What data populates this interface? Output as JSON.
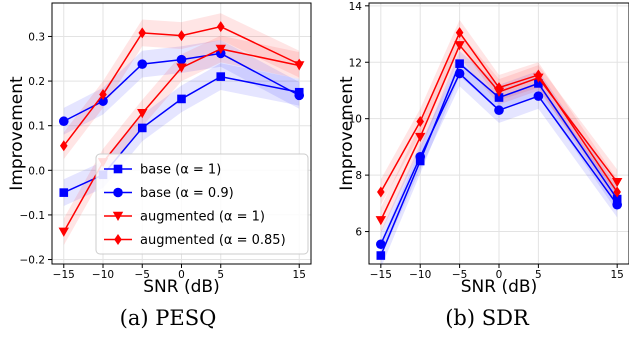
{
  "chart_data": [
    {
      "type": "line",
      "caption": "(a) PESQ",
      "title": "",
      "xlabel": "SNR (dB)",
      "ylabel": "Improvement",
      "x": [
        -15,
        -10,
        -5,
        0,
        5,
        15
      ],
      "xticks": [
        -15,
        -10,
        -5,
        0,
        5,
        15
      ],
      "xlim": [
        -16.5,
        16.5
      ],
      "yticks": [
        -0.2,
        -0.1,
        0.0,
        0.1,
        0.2,
        0.3
      ],
      "ytick_labels": [
        "-0.2",
        "-0.1",
        "0.0",
        "0.1",
        "0.2",
        "0.3"
      ],
      "ylim": [
        -0.21,
        0.375
      ],
      "grid": true,
      "legend": "bottom-center",
      "series": [
        {
          "name": "base (α = 1)",
          "values": [
            -0.05,
            -0.01,
            0.095,
            0.16,
            0.21,
            0.175
          ],
          "color": "#0000ff",
          "marker": "square",
          "band": 0.03
        },
        {
          "name": "base (α = 0.9)",
          "values": [
            0.11,
            0.155,
            0.238,
            0.248,
            0.262,
            0.168
          ],
          "color": "#0000ff",
          "marker": "circle",
          "band": 0.03
        },
        {
          "name": "augmented (α = 1)",
          "values": [
            -0.138,
            0.018,
            0.128,
            0.23,
            0.272,
            0.235
          ],
          "color": "#ff0000",
          "marker": "triangle-down",
          "band": 0.03
        },
        {
          "name": "augmented (α = 0.85)",
          "values": [
            0.055,
            0.17,
            0.308,
            0.302,
            0.322,
            0.238
          ],
          "color": "#ff0000",
          "marker": "diamond",
          "band": 0.03
        }
      ]
    },
    {
      "type": "line",
      "caption": "(b) SDR",
      "title": "",
      "xlabel": "SNR (dB)",
      "ylabel": "Improvement",
      "x": [
        -15,
        -10,
        -5,
        0,
        5,
        15
      ],
      "xticks": [
        -15,
        -10,
        -5,
        0,
        5,
        15
      ],
      "xlim": [
        -16.5,
        16.5
      ],
      "yticks": [
        6,
        8,
        10,
        12,
        14
      ],
      "ytick_labels": [
        "6",
        "8",
        "10",
        "12",
        "14"
      ],
      "ylim": [
        4.85,
        14.1
      ],
      "grid": true,
      "legend": "none",
      "series": [
        {
          "name": "base (α = 1)",
          "values": [
            5.15,
            8.5,
            11.95,
            10.75,
            11.25,
            7.15
          ],
          "color": "#0000ff",
          "marker": "square",
          "band": 0.45
        },
        {
          "name": "base (α = 0.9)",
          "values": [
            5.55,
            8.65,
            11.6,
            10.3,
            10.8,
            6.95
          ],
          "color": "#0000ff",
          "marker": "circle",
          "band": 0.45
        },
        {
          "name": "augmented (α = 1)",
          "values": [
            6.4,
            9.35,
            12.6,
            10.95,
            11.45,
            7.75
          ],
          "color": "#ff0000",
          "marker": "triangle-down",
          "band": 0.45
        },
        {
          "name": "augmented (α = 0.85)",
          "values": [
            7.4,
            9.9,
            13.05,
            11.1,
            11.55,
            7.4
          ],
          "color": "#ff0000",
          "marker": "diamond",
          "band": 0.45
        }
      ]
    }
  ]
}
